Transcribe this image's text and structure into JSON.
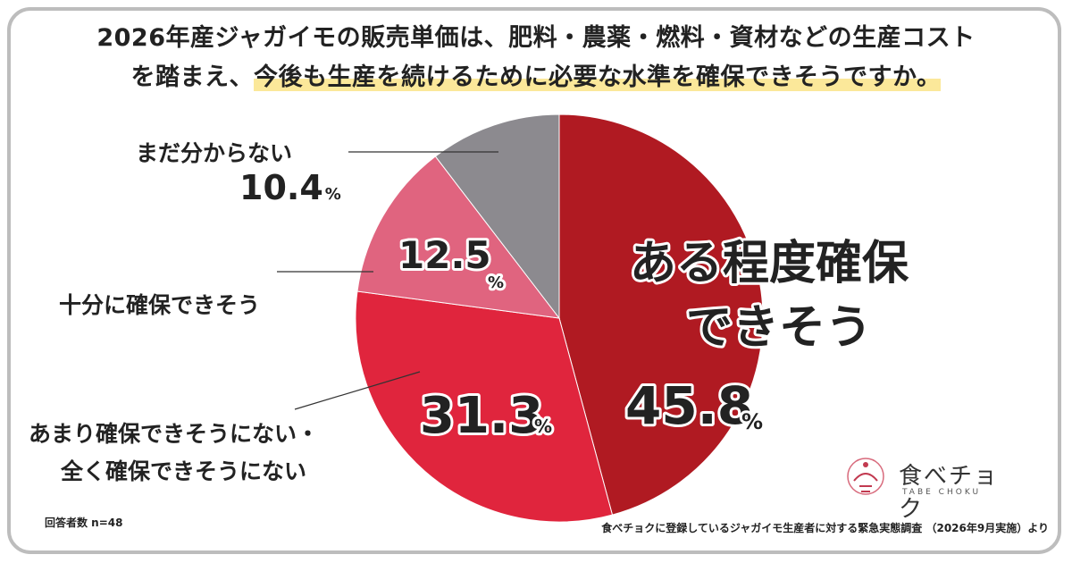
{
  "title": {
    "line1": "2026年産ジャガイモの販売単価は、肥料・農薬・燃料・資材などの生産コスト",
    "line2_prefix": "を踏まえ、",
    "line2_highlight": "今後も生産を続けるために必要な水準を確保できそうですか。"
  },
  "chart_data": {
    "type": "pie",
    "slices": [
      {
        "label": "ある程度確保できそう",
        "label_line1": "ある程度確保",
        "label_line2": "できそう",
        "value": 45.8,
        "color": "#b01a22"
      },
      {
        "label": "あまり確保できそうにない・全く確保できそうにない",
        "value": 31.3,
        "color": "#e0253d"
      },
      {
        "label": "十分に確保できそう",
        "value": 12.5,
        "color": "#e0647f"
      },
      {
        "label": "まだ分からない",
        "value": 10.4,
        "color": "#8c8a8f"
      }
    ],
    "unit": "%"
  },
  "labels": {
    "unknown": "まだ分からない",
    "unknown_pct": "10.4",
    "enough": "十分に確保できそう",
    "not_enough_line1": "あまり確保できそうにない・",
    "not_enough_line2": "全く確保できそうにない",
    "pct_unit": "%"
  },
  "footer": {
    "sample": "回答者数 n=48",
    "source": "食べチョクに登録しているジャガイモ生産者に対する緊急実態調査 （2026年9月実施）より"
  },
  "logo": {
    "name": "食べチョク",
    "sub": "TABE CHOKU"
  }
}
